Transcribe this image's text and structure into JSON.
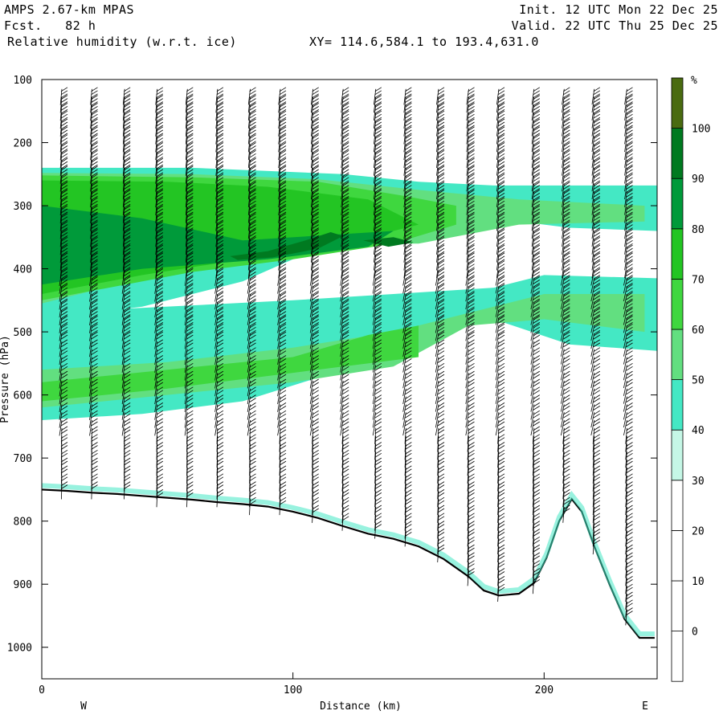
{
  "header": {
    "model": "AMPS 2.67-km MPAS",
    "forecast": "Fcst.   82 h",
    "field": "Relative humidity (w.r.t. ice)",
    "init": "Init. 12 UTC Mon 22 Dec 25",
    "valid": "Valid. 22 UTC Thu 25 Dec 25",
    "xy": "XY= 114.6,584.1 to 193.4,631.0"
  },
  "chart_data": {
    "type": "heatmap",
    "title": "Relative humidity (w.r.t. ice)",
    "xlabel": "Distance (km)",
    "ylabel": "Pressure (hPa)",
    "xlim": [
      0,
      245
    ],
    "ylim": [
      1050,
      100
    ],
    "x_ticks": [
      0,
      100,
      200
    ],
    "y_ticks": [
      100,
      200,
      300,
      400,
      500,
      600,
      700,
      800,
      900,
      1000
    ],
    "endpoints": {
      "left": "W",
      "right": "E"
    },
    "colorbar": {
      "unit": "%",
      "levels": [
        0,
        10,
        20,
        30,
        40,
        50,
        60,
        70,
        80,
        90,
        100
      ],
      "colors": [
        "#ffffff",
        "#ffffff",
        "#ffffff",
        "#ffffff",
        "#c5f7e6",
        "#44e8c4",
        "#62df80",
        "#3fd73f",
        "#23c523",
        "#009a3a",
        "#007a20",
        "#4a6b10"
      ]
    },
    "terrain_pressure": [
      [
        0,
        750
      ],
      [
        10,
        752
      ],
      [
        20,
        755
      ],
      [
        30,
        757
      ],
      [
        40,
        760
      ],
      [
        50,
        763
      ],
      [
        60,
        766
      ],
      [
        70,
        770
      ],
      [
        80,
        773
      ],
      [
        90,
        777
      ],
      [
        100,
        785
      ],
      [
        110,
        795
      ],
      [
        120,
        808
      ],
      [
        130,
        820
      ],
      [
        140,
        828
      ],
      [
        150,
        840
      ],
      [
        160,
        860
      ],
      [
        170,
        888
      ],
      [
        176,
        910
      ],
      [
        182,
        918
      ],
      [
        190,
        915
      ],
      [
        196,
        898
      ],
      [
        201,
        858
      ],
      [
        206,
        800
      ],
      [
        211,
        765
      ],
      [
        215,
        785
      ],
      [
        220,
        840
      ],
      [
        226,
        900
      ],
      [
        232,
        955
      ],
      [
        238,
        985
      ],
      [
        244,
        985
      ]
    ],
    "humidity_layers": [
      {
        "level": 40,
        "points": [
          [
            0,
            240
          ],
          [
            60,
            240
          ],
          [
            120,
            250
          ],
          [
            150,
            262
          ],
          [
            180,
            268
          ],
          [
            210,
            268
          ],
          [
            245,
            268
          ],
          [
            245,
            340
          ],
          [
            210,
            335
          ],
          [
            180,
            320
          ],
          [
            150,
            318
          ],
          [
            120,
            350
          ],
          [
            80,
            420
          ],
          [
            40,
            460
          ],
          [
            0,
            480
          ]
        ]
      },
      {
        "level": 40,
        "points": [
          [
            0,
            470
          ],
          [
            60,
            458
          ],
          [
            100,
            450
          ],
          [
            140,
            440
          ],
          [
            180,
            430
          ],
          [
            200,
            410
          ],
          [
            245,
            415
          ],
          [
            245,
            530
          ],
          [
            210,
            520
          ],
          [
            180,
            480
          ],
          [
            150,
            500
          ],
          [
            120,
            560
          ],
          [
            80,
            610
          ],
          [
            40,
            630
          ],
          [
            0,
            640
          ]
        ]
      },
      {
        "level": 50,
        "points": [
          [
            0,
            248
          ],
          [
            60,
            250
          ],
          [
            110,
            258
          ],
          [
            150,
            275
          ],
          [
            190,
            290
          ],
          [
            240,
            300
          ],
          [
            240,
            325
          ],
          [
            190,
            330
          ],
          [
            150,
            360
          ],
          [
            110,
            360
          ],
          [
            60,
            395
          ],
          [
            0,
            455
          ]
        ]
      },
      {
        "level": 50,
        "points": [
          [
            0,
            560
          ],
          [
            50,
            548
          ],
          [
            100,
            525
          ],
          [
            140,
            500
          ],
          [
            170,
            470
          ],
          [
            200,
            440
          ],
          [
            240,
            440
          ],
          [
            240,
            500
          ],
          [
            200,
            480
          ],
          [
            170,
            490
          ],
          [
            140,
            555
          ],
          [
            100,
            580
          ],
          [
            50,
            600
          ],
          [
            0,
            620
          ]
        ]
      },
      {
        "level": 60,
        "points": [
          [
            0,
            252
          ],
          [
            60,
            255
          ],
          [
            110,
            262
          ],
          [
            145,
            285
          ],
          [
            165,
            300
          ],
          [
            165,
            330
          ],
          [
            140,
            360
          ],
          [
            100,
            385
          ],
          [
            60,
            405
          ],
          [
            0,
            450
          ]
        ]
      },
      {
        "level": 60,
        "points": [
          [
            0,
            580
          ],
          [
            50,
            560
          ],
          [
            100,
            540
          ],
          [
            130,
            505
          ],
          [
            150,
            490
          ],
          [
            150,
            540
          ],
          [
            100,
            565
          ],
          [
            50,
            590
          ],
          [
            0,
            610
          ]
        ]
      },
      {
        "level": 70,
        "points": [
          [
            0,
            260
          ],
          [
            50,
            262
          ],
          [
            90,
            270
          ],
          [
            130,
            290
          ],
          [
            150,
            330
          ],
          [
            120,
            360
          ],
          [
            80,
            385
          ],
          [
            40,
            410
          ],
          [
            0,
            440
          ]
        ]
      },
      {
        "level": 80,
        "points": [
          [
            0,
            300
          ],
          [
            40,
            320
          ],
          [
            80,
            355
          ],
          [
            120,
            345
          ],
          [
            140,
            340
          ],
          [
            130,
            365
          ],
          [
            90,
            385
          ],
          [
            40,
            400
          ],
          [
            0,
            425
          ]
        ]
      },
      {
        "level": 90,
        "points": [
          [
            75,
            380
          ],
          [
            90,
            372
          ],
          [
            105,
            355
          ],
          [
            115,
            342
          ],
          [
            120,
            348
          ],
          [
            110,
            368
          ],
          [
            92,
            382
          ],
          [
            78,
            386
          ]
        ]
      },
      {
        "level": 90,
        "points": [
          [
            128,
            355
          ],
          [
            140,
            350
          ],
          [
            148,
            358
          ],
          [
            138,
            365
          ]
        ]
      }
    ],
    "wind_columns_x": [
      8,
      20,
      33,
      46,
      58,
      70,
      83,
      95,
      108,
      120,
      133,
      145,
      158,
      170,
      182,
      196,
      208,
      220,
      233
    ]
  }
}
